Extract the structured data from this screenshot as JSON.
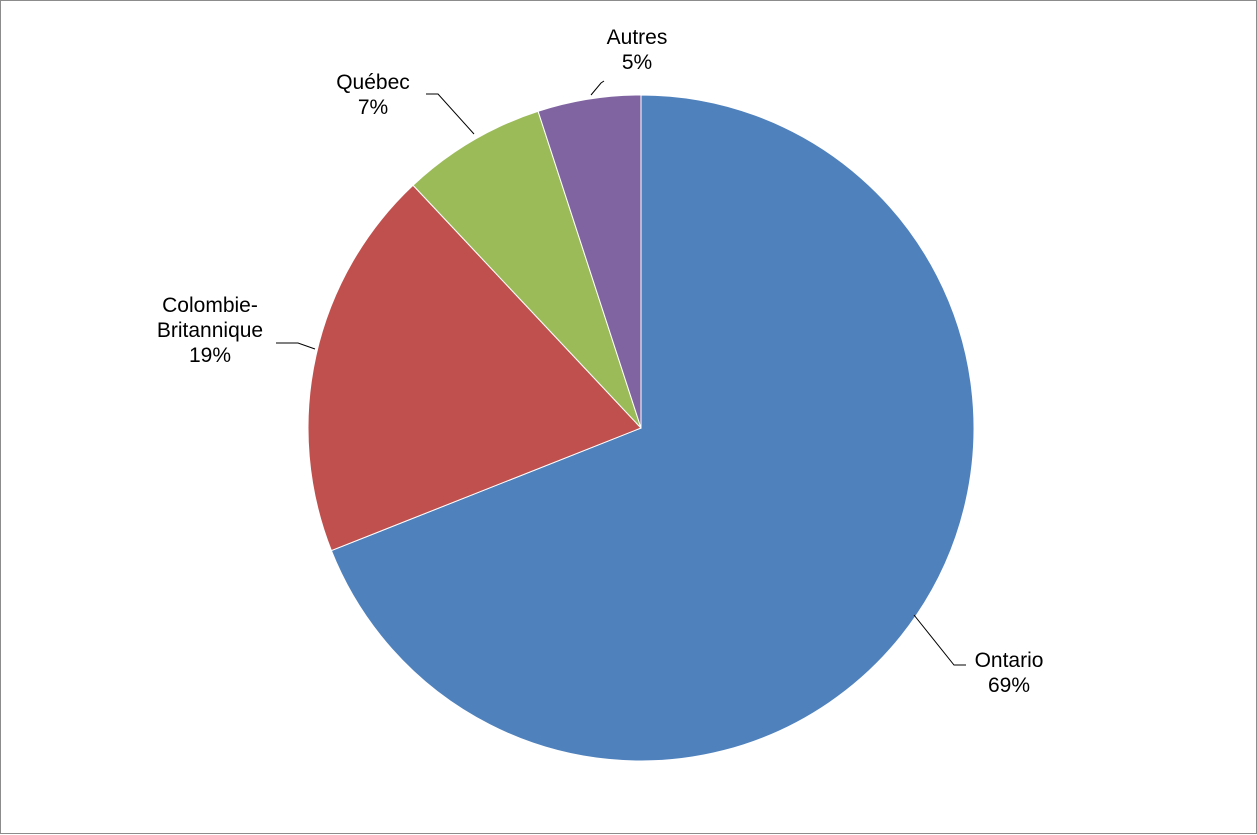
{
  "chart_data": {
    "type": "pie",
    "title": "",
    "start": "top",
    "direction": "clockwise",
    "slices": [
      {
        "label": "Ontario",
        "percent_label": "69%",
        "value": 69,
        "color": "#4F81BD"
      },
      {
        "label": "Colombie-Britannique",
        "label_lines": [
          "Colombie-",
          "Britannique"
        ],
        "percent_label": "19%",
        "value": 19,
        "color": "#C0504D"
      },
      {
        "label": "Québec",
        "percent_label": "7%",
        "value": 7,
        "color": "#9BBB59"
      },
      {
        "label": "Autres",
        "percent_label": "5%",
        "value": 5,
        "color": "#8064A2"
      }
    ],
    "legend": "none",
    "data_labels": "outside with leader lines"
  }
}
